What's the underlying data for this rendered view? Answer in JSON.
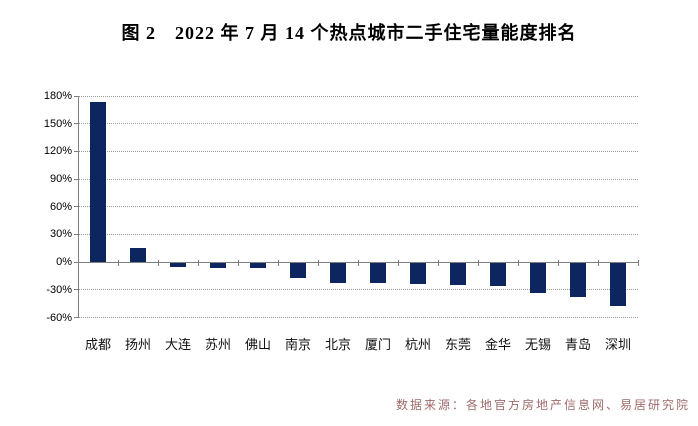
{
  "title": "图 2　2022 年 7 月 14 个热点城市二手住宅量能度排名",
  "source_note": "数据来源：各地官方房地产信息网、易居研究院",
  "colors": {
    "bar": "#0D265F",
    "axis": "#808080",
    "gridline": "#999999",
    "title_text": "#000000",
    "axis_label_text": "#000000",
    "source_text": "#9E6B6B",
    "background": "#FFFFFF"
  },
  "chart_data": {
    "type": "bar",
    "title": "图 2　2022 年 7 月 14 个热点城市二手住宅量能度排名",
    "categories": [
      "成都",
      "扬州",
      "大连",
      "苏州",
      "佛山",
      "南京",
      "北京",
      "厦门",
      "杭州",
      "东莞",
      "金华",
      "无锡",
      "青岛",
      "深圳"
    ],
    "values": [
      173,
      15,
      -4,
      -5,
      -5,
      -16,
      -21,
      -22,
      -23,
      -24,
      -25,
      -32,
      -37,
      -46
    ],
    "unit": "%",
    "xlabel": "",
    "ylabel": "",
    "ylim": [
      -60,
      180
    ],
    "yticks": [
      180,
      150,
      120,
      90,
      60,
      30,
      0,
      -30,
      -60
    ],
    "ytick_labels": [
      "180%",
      "150%",
      "120%",
      "90%",
      "60%",
      "30%",
      "0%",
      "-30%",
      "-60%"
    ],
    "grid": "horizontal-dotted",
    "legend_position": "none",
    "bar_color": "#0D265F",
    "source_note": "数据来源：各地官方房地产信息网、易居研究院"
  }
}
